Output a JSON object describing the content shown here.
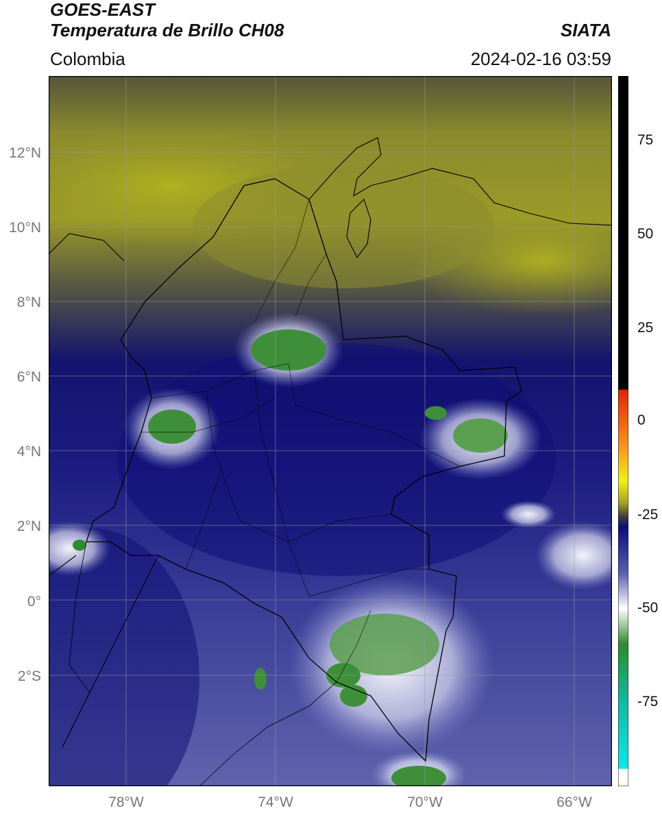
{
  "header": {
    "satellite": "GOES-EAST",
    "product": "Temperatura de Brillo CH08",
    "organization": "SIATA",
    "region": "Colombia",
    "datetime": "2024-02-16 03:59"
  },
  "map": {
    "lat_ticks": [
      "12°N",
      "10°N",
      "8°N",
      "6°N",
      "4°N",
      "2°N",
      "0°",
      "2°S"
    ],
    "lon_ticks": [
      "78°W",
      "74°W",
      "70°W",
      "66°W"
    ]
  },
  "colorbar": {
    "ticks": [
      "75",
      "50",
      "25",
      "0",
      "-25",
      "-50",
      "-75"
    ],
    "colors": {
      "black": "#000000",
      "red": "#e0240a",
      "orange": "#f7941d",
      "yellow": "#f2ee1c",
      "olive": "#a8a821",
      "dark": "#404040",
      "navy": "#0c0c7a",
      "blue": "#5a5fb0",
      "white": "#ffffff",
      "green": "#2e8b2e",
      "teal": "#14b8a0",
      "cyan": "#10e8e8"
    }
  }
}
